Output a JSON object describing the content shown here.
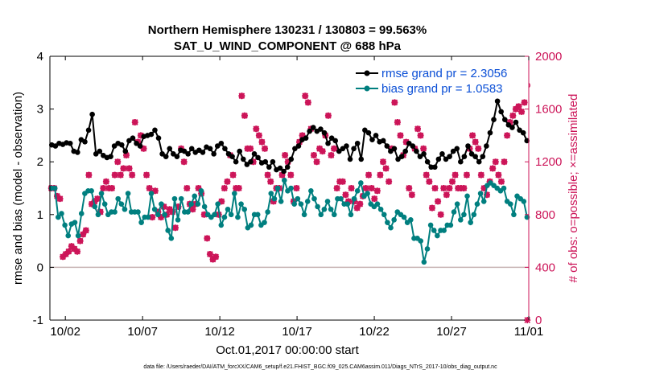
{
  "chart_data": {
    "type": "line",
    "title": "Northern Hemisphere 130231 / 130803 = 99.563%",
    "subtitle": "SAT_U_WIND_COMPONENT @ 688 hPa",
    "xlabel": "Oct.01,2017 00:00:00 start",
    "ylabel": "rmse and bias (model - observation)",
    "y2label": "# of obs: o=possible; ×=assimilated",
    "footnote": "data file: /Users/raeder/DAI/ATM_forcXX/CAM6_setup/f.e21.FHIST_BGC.f09_025.CAM6assim.011/Diags_NTrS_2017-10/obs_diag_output.nc",
    "xlim": [
      0,
      31
    ],
    "ylim": [
      -1,
      4
    ],
    "y2lim": [
      0,
      2000
    ],
    "x_ticks": [
      {
        "value": 1,
        "label": "10/02"
      },
      {
        "value": 6,
        "label": "10/07"
      },
      {
        "value": 11,
        "label": "10/12"
      },
      {
        "value": 16,
        "label": "10/17"
      },
      {
        "value": 21,
        "label": "10/22"
      },
      {
        "value": 26,
        "label": "10/27"
      },
      {
        "value": 31,
        "label": "11/01"
      }
    ],
    "y_ticks": [
      {
        "value": -1,
        "label": "-1"
      },
      {
        "value": 0,
        "label": "0"
      },
      {
        "value": 1,
        "label": "1"
      },
      {
        "value": 2,
        "label": "2"
      },
      {
        "value": 3,
        "label": "3"
      },
      {
        "value": 4,
        "label": "4"
      }
    ],
    "y2_ticks": [
      {
        "value": 0,
        "label": "0"
      },
      {
        "value": 400,
        "label": "400"
      },
      {
        "value": 800,
        "label": "800"
      },
      {
        "value": 1200,
        "label": "1200"
      },
      {
        "value": 1600,
        "label": "1600"
      },
      {
        "value": 2000,
        "label": "2000"
      }
    ],
    "legend": [
      {
        "label": "rmse grand pr = 2.3056",
        "color": "#000000"
      },
      {
        "label": "bias grand pr = 1.0583",
        "color": "#007f7f"
      }
    ],
    "colors": {
      "rmse": "#000000",
      "bias": "#007f7f",
      "obs": "#cc1458",
      "zero_line": "#c8b4b4"
    },
    "series": [
      {
        "name": "rmse",
        "y": [
          2.32,
          2.3,
          2.35,
          2.33,
          2.36,
          2.35,
          2.2,
          2.18,
          2.42,
          2.38,
          2.6,
          2.9,
          2.15,
          2.2,
          2.12,
          2.08,
          2.1,
          2.3,
          2.35,
          2.32,
          2.2,
          2.4,
          2.45,
          2.35,
          2.3,
          2.48,
          2.5,
          2.52,
          2.6,
          2.45,
          2.15,
          2.1,
          2.25,
          2.15,
          2.1,
          2.22,
          2.2,
          2.15,
          2.25,
          2.18,
          2.22,
          2.18,
          2.28,
          2.25,
          2.15,
          2.3,
          2.35,
          2.25,
          2.15,
          2.1,
          2.0,
          2.2,
          2.05,
          1.95,
          2.0,
          2.15,
          2.08,
          1.98,
          2.0,
          1.9,
          2.0,
          1.85,
          1.88,
          1.82,
          1.9,
          2.05,
          2.25,
          2.3,
          2.42,
          2.45,
          2.58,
          2.65,
          2.58,
          2.62,
          2.55,
          2.35,
          2.45,
          2.4,
          2.2,
          2.25,
          2.3,
          2.05,
          2.25,
          2.35,
          2.05,
          2.6,
          2.55,
          2.42,
          2.5,
          2.38,
          2.4,
          2.3,
          2.2,
          2.25,
          2.05,
          2.1,
          2.2,
          2.35,
          2.3,
          2.2,
          2.1,
          2.15,
          2.0,
          1.9,
          1.9,
          2.05,
          2.15,
          2.05,
          2.1,
          2.2,
          2.25,
          2.0,
          2.1,
          2.3,
          2.15,
          2.1,
          2.0,
          2.1,
          2.3,
          2.55,
          2.8,
          3.15,
          2.95,
          2.8,
          2.7,
          2.65,
          2.75,
          2.6,
          2.55,
          2.4
        ]
      },
      {
        "name": "bias",
        "y": [
          1.5,
          1.5,
          0.95,
          1.02,
          0.8,
          0.6,
          0.82,
          0.85,
          0.6,
          1.02,
          1.4,
          1.45,
          1.45,
          1.15,
          1.0,
          1.4,
          1.2,
          1.0,
          1.05,
          1.05,
          1.3,
          1.2,
          1.1,
          1.4,
          1.05,
          1.05,
          1.05,
          0.85,
          0.95,
          0.95,
          1.4,
          1.1,
          1.0,
          1.2,
          1.0,
          0.7,
          0.55,
          1.3,
          0.9,
          1.3,
          1.05,
          1.05,
          1.2,
          1.35,
          1.2,
          1.45,
          1.15,
          1.0,
          0.95,
          1.0,
          1.2,
          0.8,
          0.95,
          1.1,
          1.0,
          1.4,
          0.95,
          1.2,
          1.1,
          0.75,
          0.8,
          1.0,
          1.0,
          0.8,
          0.85,
          1.05,
          1.4,
          1.3,
          1.5,
          1.25,
          1.65,
          1.45,
          1.5,
          1.2,
          1.3,
          1.2,
          1.0,
          1.25,
          1.45,
          1.3,
          1.15,
          1.0,
          1.1,
          1.25,
          1.1,
          1.0,
          1.3,
          1.3,
          1.2,
          1.2,
          1.0,
          1.3,
          1.45,
          1.6,
          1.35,
          1.4,
          1.2,
          1.15,
          1.2,
          1.1,
          1.0,
          0.85,
          0.75,
          0.9,
          1.05,
          1.0,
          0.95,
          0.85,
          0.9,
          0.55,
          0.55,
          0.5,
          0.1,
          0.35,
          0.8,
          0.7,
          0.6,
          0.7,
          0.7,
          0.8,
          0.8,
          1.05,
          1.2,
          0.9,
          1.0,
          1.35,
          0.85,
          1.0,
          1.2,
          1.4,
          1.25,
          1.55,
          1.6,
          1.55,
          1.5,
          1.45,
          1.5,
          1.25,
          1.2,
          1.0,
          1.35,
          1.3,
          1.25,
          0.95
        ]
      },
      {
        "name": "obs_possible",
        "y": [
          1000,
          1000,
          940,
          920,
          480,
          500,
          520,
          560,
          540,
          520,
          600,
          650,
          680,
          1100,
          880,
          900,
          920,
          820,
          1000,
          1050,
          1000,
          1000,
          1100,
          1200,
          1100,
          1150,
          1250,
          1150,
          1100,
          1500,
          1350,
          1400,
          1300,
          1100,
          1000,
          780,
          980,
          820,
          780,
          860,
          800,
          840,
          820,
          700,
          860,
          1300,
          1200,
          1000,
          880,
          840,
          880,
          1000,
          960,
          800,
          620,
          500,
          460,
          480,
          800,
          900,
          1000,
          1050,
          1250,
          1100,
          1000,
          1000,
          1700,
          1550,
          1300,
          1300,
          1200,
          1450,
          1400,
          1350,
          1300,
          1100,
          1050,
          900,
          1000,
          1000,
          1100,
          1250,
          1200,
          1100,
          900,
          1000,
          1350,
          1400,
          1700,
          1650,
          1450,
          1250,
          1200,
          1300,
          1280,
          1400,
          1550,
          1250,
          1300,
          1000,
          1050,
          1050,
          950,
          900,
          1000,
          900,
          850,
          880,
          940,
          1000,
          1100,
          1000,
          920,
          980,
          1100,
          1200,
          1150,
          1050,
          1300,
          1650,
          1500,
          1400,
          1250,
          1350,
          1000,
          950,
          1300,
          1450,
          1400,
          1300,
          1100,
          1050,
          850,
          1000,
          900,
          800,
          1000,
          950,
          1000,
          1050,
          1100,
          1000,
          1000,
          1000,
          1100,
          1300,
          1400,
          1350,
          1300,
          1100,
          1000,
          950,
          1050,
          1150,
          1200,
          1100,
          1050,
          1200,
          1400,
          1500,
          1550,
          1600,
          1620,
          1580,
          1650,
          1780
        ]
      },
      {
        "name": "obs_assimilated",
        "y": [
          1000,
          1000,
          940,
          920,
          480,
          500,
          520,
          560,
          540,
          520,
          600,
          650,
          680,
          1100,
          880,
          900,
          920,
          820,
          1000,
          1050,
          1000,
          1000,
          1100,
          1200,
          1100,
          1150,
          1250,
          1150,
          1100,
          1500,
          1350,
          1400,
          1300,
          1100,
          1000,
          780,
          980,
          820,
          780,
          860,
          800,
          840,
          820,
          700,
          860,
          1300,
          1200,
          1000,
          880,
          840,
          880,
          1000,
          960,
          800,
          620,
          500,
          460,
          480,
          800,
          900,
          1000,
          1050,
          1250,
          1100,
          1000,
          1000,
          1700,
          1550,
          1300,
          1300,
          1200,
          1450,
          1400,
          1350,
          1300,
          1100,
          1050,
          900,
          1000,
          1000,
          1100,
          1250,
          1200,
          1100,
          900,
          1000,
          1350,
          1400,
          1700,
          1650,
          1450,
          1250,
          1200,
          1300,
          1280,
          1400,
          1550,
          1250,
          1300,
          1000,
          1050,
          1050,
          950,
          900,
          1000,
          900,
          850,
          880,
          940,
          1000,
          1100,
          1000,
          920,
          980,
          1100,
          1200,
          1150,
          1050,
          1300,
          1650,
          1500,
          1400,
          1250,
          1350,
          1000,
          950,
          1300,
          1450,
          1400,
          1300,
          1100,
          1050,
          850,
          1000,
          900,
          800,
          1000,
          950,
          1000,
          1050,
          1100,
          1000,
          1000,
          1000,
          1100,
          1300,
          1400,
          1350,
          1300,
          1100,
          1000,
          950,
          1050,
          1150,
          1200,
          1100,
          1050,
          1200,
          1400,
          1500,
          1550,
          1600,
          1620,
          1580,
          1650,
          0
        ]
      }
    ]
  }
}
